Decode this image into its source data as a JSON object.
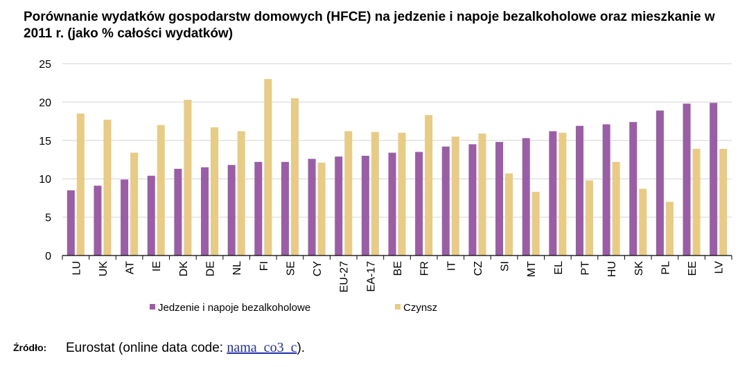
{
  "chart_data": {
    "type": "bar",
    "title": "Porównanie wydatków gospodarstw domowych (HFCE) na jedzenie i napoje bezalkoholowe oraz mieszkanie w 2011 r. (jako % całości wydatków)",
    "categories": [
      "LU",
      "UK",
      "AT",
      "IE",
      "DK",
      "DE",
      "NL",
      "FI",
      "SE",
      "CY",
      "EU-27",
      "EA-17",
      "BE",
      "FR",
      "IT",
      "CZ",
      "SI",
      "MT",
      "EL",
      "PT",
      "HU",
      "SK",
      "PL",
      "EE",
      "LV"
    ],
    "series": [
      {
        "name": "Jedzenie i napoje bezalkoholowe",
        "color": "#9b5ea6",
        "values": [
          8.5,
          9.1,
          9.9,
          10.4,
          11.3,
          11.5,
          11.8,
          12.2,
          12.2,
          12.6,
          12.9,
          13.0,
          13.4,
          13.5,
          14.2,
          14.5,
          14.8,
          15.3,
          16.2,
          16.9,
          17.1,
          17.4,
          18.9,
          19.8,
          19.9
        ]
      },
      {
        "name": "Czynsz",
        "color": "#e8cb84",
        "values": [
          18.5,
          17.7,
          13.4,
          17.0,
          20.3,
          16.7,
          16.2,
          23.0,
          20.5,
          12.1,
          16.2,
          16.1,
          16.0,
          18.3,
          15.5,
          15.9,
          10.7,
          8.3,
          16.0,
          9.8,
          12.2,
          8.7,
          7.0,
          13.9,
          13.9
        ]
      }
    ],
    "ylim": [
      0,
      25
    ],
    "yticks": [
      0,
      5,
      10,
      15,
      20,
      25
    ],
    "grid": true,
    "legend_position": "bottom"
  },
  "source": {
    "label": "Źródło:",
    "prefix": "Eurostat (online data code: ",
    "link": "nama_co3_c",
    "suffix": ")."
  }
}
